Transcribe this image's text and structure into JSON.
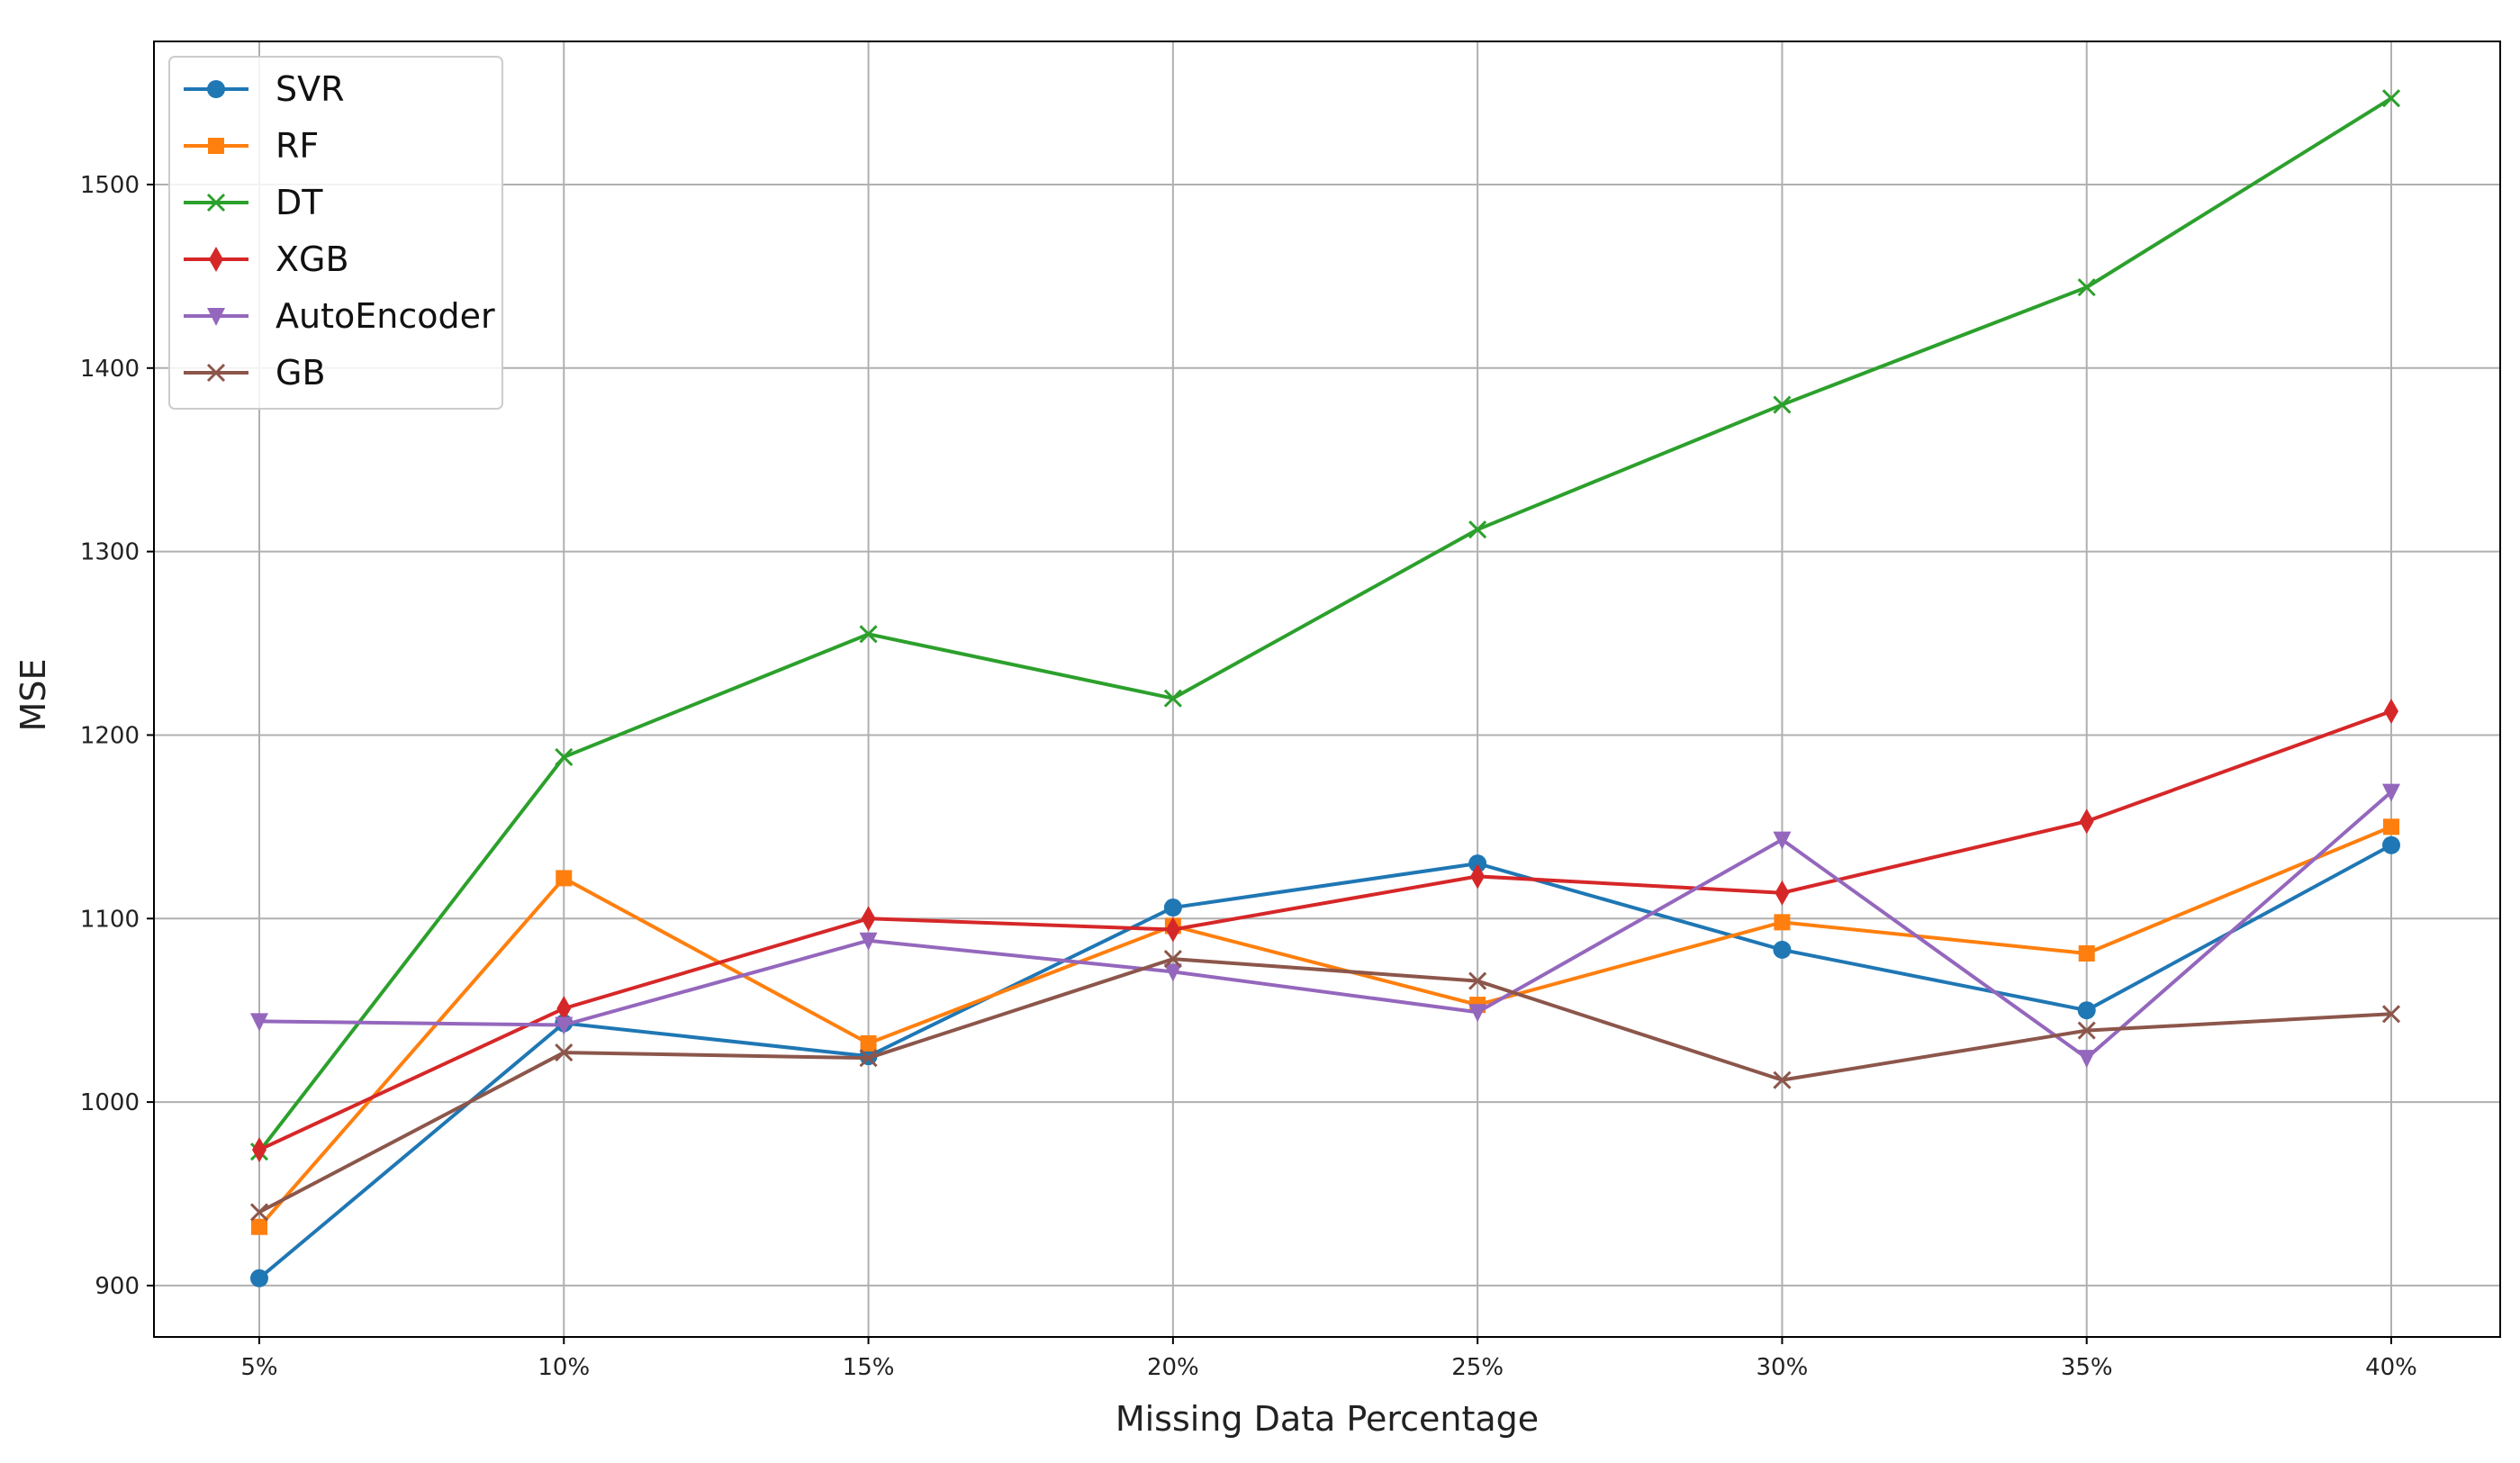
{
  "chart_data": {
    "type": "line",
    "xlabel": "Missing Data Percentage",
    "ylabel": "MSE",
    "categories": [
      "5%",
      "10%",
      "15%",
      "20%",
      "25%",
      "30%",
      "35%",
      "40%"
    ],
    "ylim": [
      872,
      1578
    ],
    "yticks": [
      900,
      1000,
      1100,
      1200,
      1300,
      1400,
      1500
    ],
    "grid": true,
    "legend_position": "top-left",
    "series": [
      {
        "name": "SVR",
        "color": "#1f77b4",
        "marker": "circle",
        "values": [
          904,
          1043,
          1025,
          1106,
          1130,
          1083,
          1050,
          1140
        ]
      },
      {
        "name": "RF",
        "color": "#ff7f0e",
        "marker": "square",
        "values": [
          932,
          1122,
          1032,
          1096,
          1053,
          1098,
          1081,
          1150
        ]
      },
      {
        "name": "DT",
        "color": "#2ca02c",
        "marker": "x",
        "values": [
          973,
          1188,
          1255,
          1220,
          1312,
          1380,
          1444,
          1547
        ]
      },
      {
        "name": "XGB",
        "color": "#d62728",
        "marker": "diamond",
        "values": [
          974,
          1051,
          1100,
          1094,
          1123,
          1114,
          1153,
          1213
        ]
      },
      {
        "name": "AutoEncoder",
        "color": "#9467bd",
        "marker": "triangle-down",
        "values": [
          1044,
          1042,
          1088,
          1071,
          1049,
          1143,
          1024,
          1169
        ]
      },
      {
        "name": "GB",
        "color": "#8c564b",
        "marker": "x",
        "values": [
          940,
          1027,
          1024,
          1078,
          1066,
          1012,
          1039,
          1048
        ]
      }
    ]
  }
}
